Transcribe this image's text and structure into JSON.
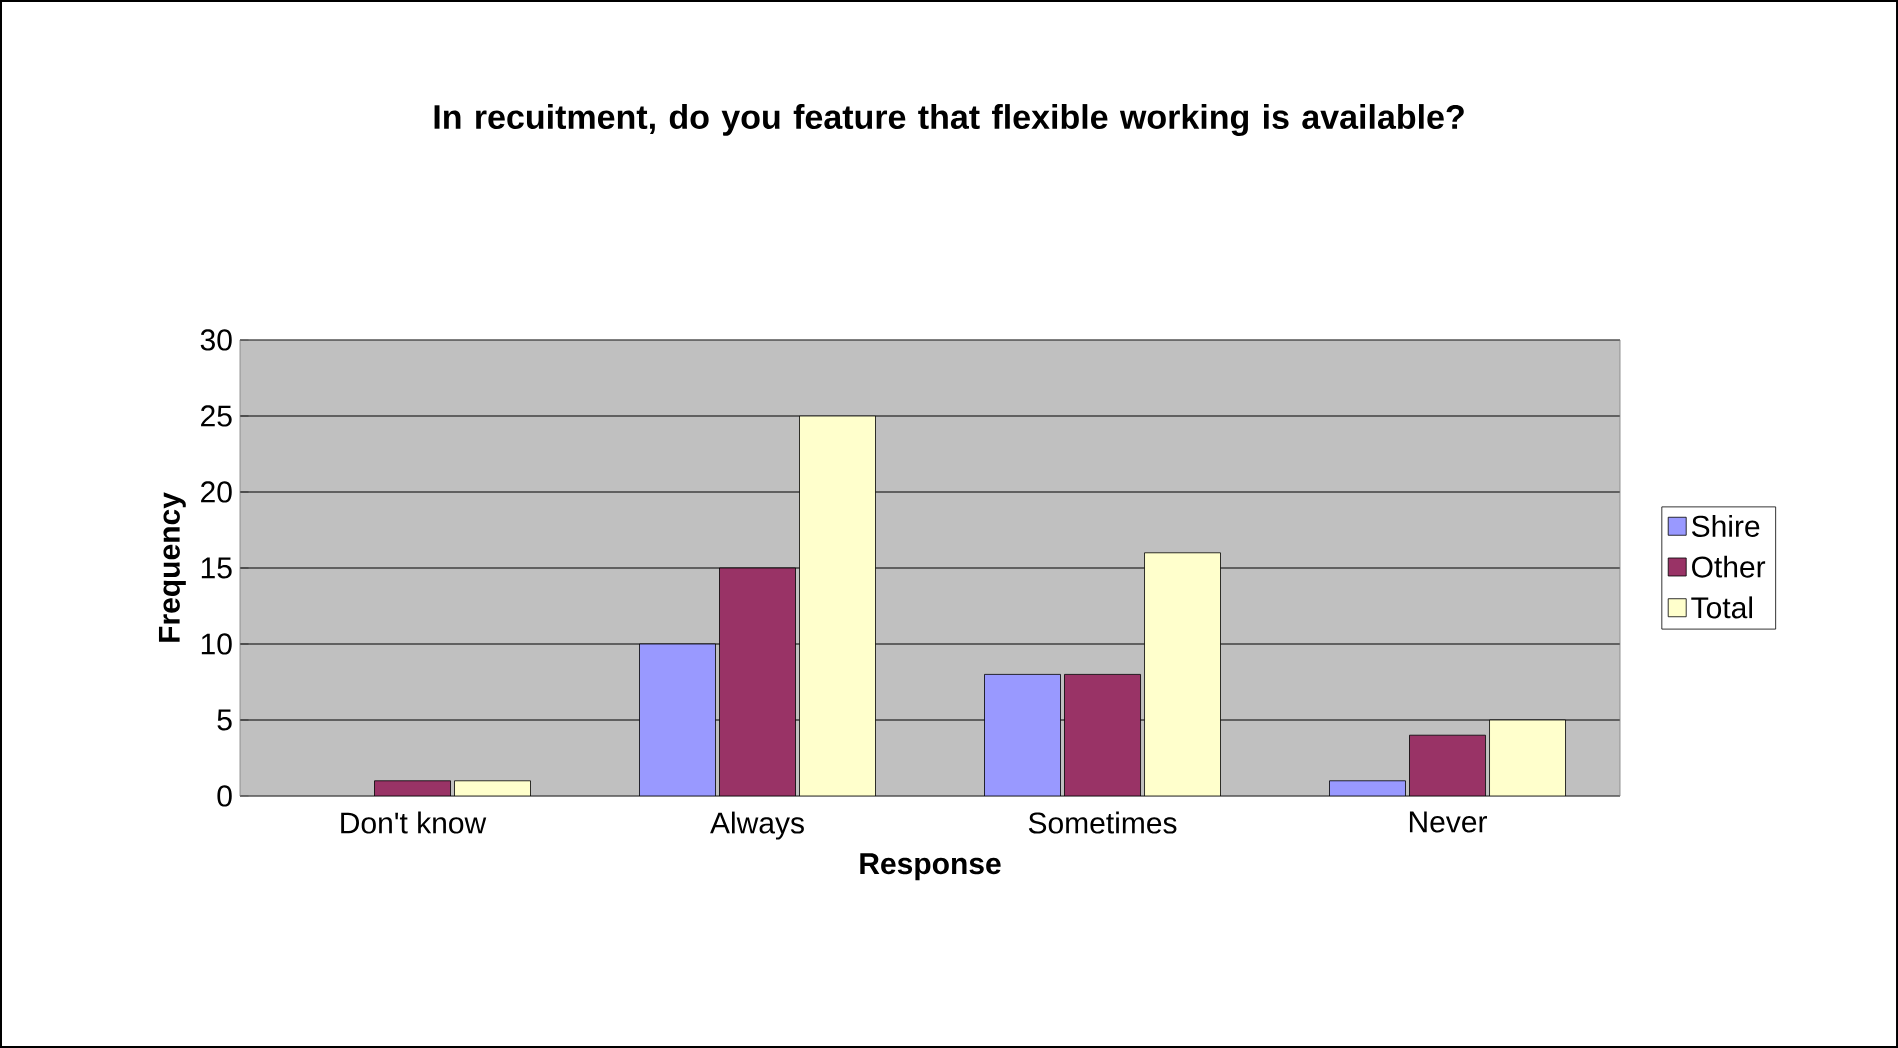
{
  "chart_data": {
    "type": "bar",
    "title": "In recuitment, do you feature that flexible working is available?",
    "xlabel": "Response",
    "ylabel": "Frequency",
    "categories": [
      "Don't know",
      "Always",
      "Sometimes",
      "Never"
    ],
    "series": [
      {
        "name": "Shire",
        "color": "#9999ff",
        "values": [
          0,
          10,
          8,
          1
        ]
      },
      {
        "name": "Other",
        "color": "#993366",
        "values": [
          1,
          15,
          8,
          4
        ]
      },
      {
        "name": "Total",
        "color": "#ffffcc",
        "values": [
          1,
          25,
          16,
          5
        ]
      }
    ],
    "ylim": [
      0,
      30
    ],
    "yticks": [
      0,
      5,
      10,
      15,
      20,
      25,
      30
    ],
    "grid": "y",
    "legend": "right"
  }
}
